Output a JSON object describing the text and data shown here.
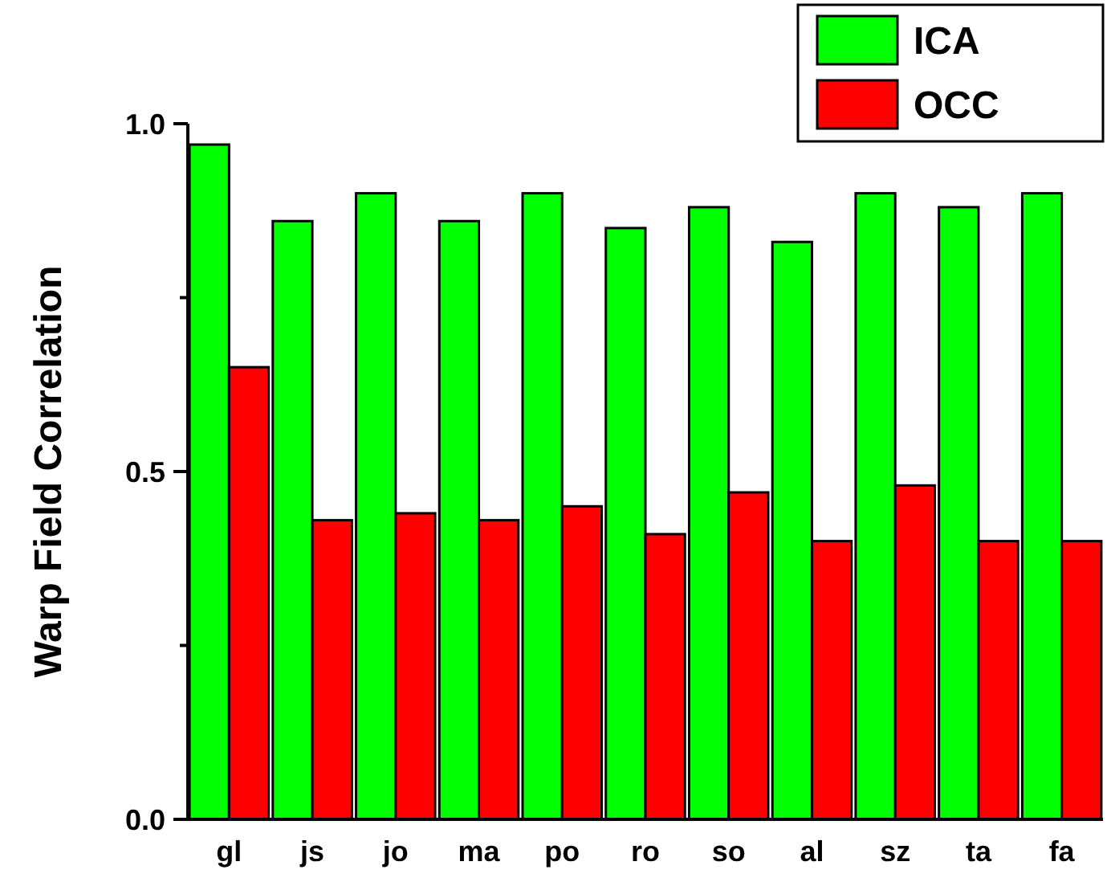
{
  "chart_data": {
    "type": "bar",
    "ylabel": "Warp Field Correlation",
    "categories": [
      "gl",
      "js",
      "jo",
      "ma",
      "po",
      "ro",
      "so",
      "al",
      "sz",
      "ta",
      "fa"
    ],
    "series": [
      {
        "name": "ICA",
        "color": "#00ff00",
        "values": [
          0.97,
          0.86,
          0.9,
          0.86,
          0.9,
          0.85,
          0.88,
          0.83,
          0.9,
          0.88,
          0.9
        ]
      },
      {
        "name": "OCC",
        "color": "#ff0000",
        "values": [
          0.65,
          0.43,
          0.44,
          0.43,
          0.45,
          0.41,
          0.47,
          0.4,
          0.48,
          0.4,
          0.4
        ]
      }
    ],
    "ylim": [
      0,
      1
    ],
    "yticks": [
      {
        "value": 0,
        "label": "0.0"
      },
      {
        "value": 0.25,
        "label": null
      },
      {
        "value": 0.5,
        "label": "0.5"
      },
      {
        "value": 0.75,
        "label": null
      },
      {
        "value": 1,
        "label": "1.0"
      }
    ],
    "grid": false,
    "legend": "top right"
  }
}
